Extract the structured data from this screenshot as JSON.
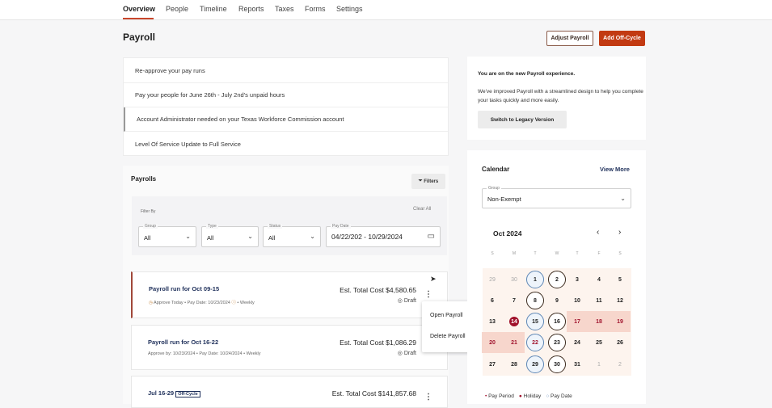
{
  "nav": {
    "tabs": [
      "Overview",
      "People",
      "Timeline",
      "Reports",
      "Taxes",
      "Forms",
      "Settings"
    ],
    "active": "Overview"
  },
  "page": {
    "title": "Payroll",
    "adjust_label": "Adjust Payroll",
    "offcycle_label": "Add Off-Cycle"
  },
  "alerts": [
    "Re-approve your pay runs",
    "Pay your people for June 26th - July 2nd's unpaid hours",
    "Account Administrator needed on your Texas Workforce Commission account",
    "Level Of Service Update to Full Service"
  ],
  "notice": {
    "heading": "You are on the new Payroll experience.",
    "body": "We've improved Payroll with a streamlined design to help you complete your tasks quickly and more easily.",
    "button": "Switch to Legacy Version"
  },
  "payrolls": {
    "title": "Payrolls",
    "filters_label": "Filters",
    "filter_by": "Filter By",
    "clear_all": "Clear All",
    "filters": [
      {
        "label": "Group",
        "value": "All"
      },
      {
        "label": "Type",
        "value": "All"
      },
      {
        "label": "Status",
        "value": "All"
      },
      {
        "label": "Pay Date",
        "value": "04/22/202 - 10/29/2024"
      }
    ],
    "runs": [
      {
        "name": "Payroll run for Oct 09-15",
        "approve": "Approve Today",
        "pay_date": "Pay Date: 10/23/2024",
        "freq": "Weekly",
        "cost": "Est. Total Cost $4,580.65",
        "status": "Draft"
      },
      {
        "name": "Payroll run for Oct 16-22",
        "approve": "Approve by: 10/23/2024",
        "pay_date": "Pay Date: 10/24/2024",
        "freq": "Weekly",
        "cost": "Est. Total Cost $1,086.29",
        "status": "Draft"
      },
      {
        "name": "Jul 16-29",
        "badge": "Off-Cycle",
        "cost": "Est. Total Cost $141,857.68"
      }
    ],
    "menu": [
      "Open Payroll",
      "Delete Payroll"
    ]
  },
  "calendar": {
    "title": "Calendar",
    "view_more": "View More",
    "group_label": "Group",
    "group_value": "Non-Exempt",
    "month": "Oct 2024",
    "weekdays": [
      "S",
      "M",
      "T",
      "W",
      "T",
      "F",
      "S"
    ],
    "weeks": [
      [
        "29",
        "30",
        "1",
        "2",
        "3",
        "4",
        "5"
      ],
      [
        "6",
        "7",
        "8",
        "9",
        "10",
        "11",
        "12"
      ],
      [
        "13",
        "14",
        "15",
        "16",
        "17",
        "18",
        "19"
      ],
      [
        "20",
        "21",
        "22",
        "23",
        "24",
        "25",
        "26"
      ],
      [
        "27",
        "28",
        "29",
        "30",
        "31",
        "1",
        "2"
      ]
    ],
    "pay_period_circles": [
      "2",
      "8",
      "16",
      "23",
      "30"
    ],
    "pay_date_circles": [
      "1",
      "15",
      "22",
      "29"
    ],
    "holiday": "14",
    "legend": [
      "Pay Period",
      "Holiday",
      "Pay Date"
    ],
    "colors": {
      "holiday": "#a0122c",
      "pay_date": "#5d86b5",
      "pay_period": "#3b2a1e",
      "shade": "#f7d6cc"
    }
  },
  "colors": {
    "accent": "#c8452a"
  }
}
